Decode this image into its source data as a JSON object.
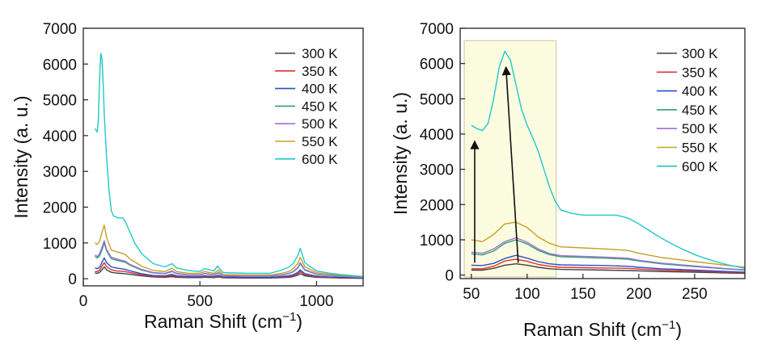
{
  "legend_labels": [
    "300 K",
    "350 K",
    "400 K",
    "450 K",
    "500 K",
    "550 K",
    "600 K"
  ],
  "chart_data": [
    {
      "type": "line",
      "xlabel": "Raman Shift (cm",
      "xlabel_sup": "−1",
      "xlabel_end": ")",
      "ylabel": "Intensity (a. u.)",
      "xlim": [
        0,
        1200
      ],
      "ylim": [
        -200,
        7000
      ],
      "xticks": [
        0,
        500,
        1000
      ],
      "yticks": [
        0,
        1000,
        2000,
        3000,
        4000,
        5000,
        6000,
        7000
      ],
      "grid": false,
      "legend_position": "top-right",
      "series": [
        {
          "name": "300 K",
          "color": "#404040",
          "x": [
            50,
            60,
            70,
            80,
            90,
            100,
            120,
            140,
            160,
            180,
            200,
            250,
            300,
            350,
            380,
            400,
            450,
            500,
            520,
            560,
            580,
            600,
            700,
            800,
            850,
            880,
            900,
            920,
            930,
            950,
            1000,
            1050,
            1100,
            1200
          ],
          "y": [
            160,
            150,
            180,
            250,
            330,
            250,
            180,
            160,
            150,
            140,
            120,
            80,
            50,
            40,
            60,
            40,
            30,
            30,
            40,
            30,
            50,
            25,
            20,
            20,
            30,
            40,
            60,
            100,
            140,
            80,
            40,
            30,
            20,
            10
          ]
        },
        {
          "name": "350 K",
          "color": "#e03030",
          "x": [
            50,
            60,
            70,
            80,
            90,
            100,
            120,
            140,
            160,
            180,
            200,
            250,
            300,
            350,
            380,
            400,
            450,
            500,
            520,
            560,
            580,
            600,
            700,
            800,
            850,
            880,
            900,
            920,
            930,
            950,
            1000,
            1050,
            1100,
            1200
          ],
          "y": [
            200,
            200,
            240,
            350,
            450,
            340,
            250,
            220,
            210,
            200,
            170,
            110,
            70,
            60,
            90,
            60,
            45,
            45,
            60,
            45,
            70,
            35,
            30,
            30,
            45,
            60,
            85,
            140,
            200,
            110,
            55,
            40,
            30,
            15
          ]
        },
        {
          "name": "400 K",
          "color": "#2850c8",
          "x": [
            50,
            60,
            70,
            80,
            90,
            100,
            120,
            140,
            160,
            180,
            200,
            250,
            300,
            350,
            380,
            400,
            450,
            500,
            520,
            560,
            580,
            600,
            700,
            800,
            850,
            880,
            900,
            920,
            930,
            950,
            1000,
            1050,
            1100,
            1200
          ],
          "y": [
            300,
            280,
            320,
            460,
            580,
            450,
            330,
            300,
            280,
            260,
            220,
            140,
            90,
            80,
            120,
            80,
            60,
            60,
            80,
            60,
            95,
            45,
            40,
            40,
            60,
            80,
            110,
            180,
            250,
            140,
            70,
            50,
            40,
            20
          ]
        },
        {
          "name": "450 K",
          "color": "#30a070",
          "x": [
            50,
            60,
            70,
            80,
            90,
            100,
            120,
            140,
            160,
            180,
            200,
            250,
            300,
            350,
            380,
            400,
            450,
            500,
            520,
            560,
            580,
            600,
            700,
            800,
            850,
            880,
            900,
            920,
            930,
            950,
            1000,
            1050,
            1100,
            1200
          ],
          "y": [
            620,
            580,
            640,
            800,
            1000,
            780,
            560,
            520,
            490,
            460,
            380,
            240,
            160,
            140,
            200,
            140,
            100,
            100,
            140,
            100,
            160,
            80,
            70,
            70,
            100,
            140,
            190,
            300,
            420,
            240,
            120,
            90,
            70,
            35
          ]
        },
        {
          "name": "500 K",
          "color": "#a070d8",
          "x": [
            50,
            60,
            70,
            80,
            90,
            100,
            120,
            140,
            160,
            180,
            200,
            250,
            300,
            350,
            380,
            400,
            450,
            500,
            520,
            560,
            580,
            600,
            700,
            800,
            850,
            880,
            900,
            920,
            930,
            950,
            1000,
            1050,
            1100,
            1200
          ],
          "y": [
            660,
            620,
            700,
            880,
            1060,
            820,
            600,
            560,
            520,
            490,
            400,
            260,
            170,
            150,
            215,
            150,
            110,
            110,
            150,
            110,
            175,
            85,
            75,
            75,
            110,
            150,
            205,
            320,
            450,
            260,
            130,
            95,
            75,
            40
          ]
        },
        {
          "name": "550 K",
          "color": "#c8a020",
          "x": [
            50,
            60,
            70,
            80,
            90,
            100,
            120,
            140,
            160,
            180,
            200,
            250,
            300,
            350,
            380,
            400,
            450,
            500,
            520,
            560,
            580,
            600,
            700,
            800,
            850,
            880,
            900,
            920,
            930,
            950,
            1000,
            1050,
            1100,
            1200
          ],
          "y": [
            1000,
            960,
            1050,
            1300,
            1500,
            1150,
            800,
            760,
            720,
            680,
            550,
            350,
            230,
            200,
            290,
            200,
            150,
            150,
            200,
            150,
            240,
            115,
            100,
            100,
            150,
            200,
            280,
            430,
            600,
            340,
            170,
            125,
            100,
            50
          ]
        },
        {
          "name": "600 K",
          "color": "#20c8c8",
          "x": [
            50,
            60,
            65,
            70,
            75,
            80,
            85,
            90,
            100,
            110,
            120,
            130,
            150,
            170,
            180,
            200,
            220,
            250,
            300,
            350,
            380,
            400,
            450,
            500,
            520,
            560,
            575,
            600,
            700,
            800,
            850,
            880,
            900,
            920,
            930,
            950,
            1000,
            1050,
            1100,
            1200
          ],
          "y": [
            4200,
            4100,
            4500,
            5600,
            6300,
            6150,
            5500,
            4600,
            3400,
            2500,
            1900,
            1750,
            1700,
            1700,
            1600,
            1300,
            1000,
            700,
            420,
            330,
            420,
            300,
            230,
            200,
            280,
            220,
            350,
            170,
            150,
            150,
            240,
            320,
            420,
            650,
            850,
            450,
            220,
            160,
            120,
            60
          ]
        }
      ]
    },
    {
      "type": "line",
      "xlabel": "Raman Shift (cm",
      "xlabel_sup": "−1",
      "xlabel_end": ")",
      "ylabel": "Intensity (a. u.)",
      "xlim": [
        40,
        295
      ],
      "ylim": [
        -100,
        7000
      ],
      "xticks": [
        50,
        100,
        150,
        200,
        250
      ],
      "yticks": [
        0,
        1000,
        2000,
        3000,
        4000,
        5000,
        6000,
        7000
      ],
      "grid": false,
      "legend_position": "top-right",
      "highlight_region": {
        "x": [
          40,
          126
        ],
        "y": [
          -100,
          6650
        ],
        "color": "#fbfbe0"
      },
      "arrows": [
        {
          "from": [
            53,
            350
          ],
          "to": [
            53,
            3800
          ]
        },
        {
          "from": [
            92,
            350
          ],
          "to": [
            81,
            5900
          ]
        }
      ],
      "series": [
        {
          "name": "300 K",
          "color": "#404040",
          "x": [
            50,
            60,
            70,
            80,
            90,
            100,
            110,
            120,
            130,
            150,
            170,
            190,
            200,
            220,
            250,
            280,
            295
          ],
          "y": [
            140,
            140,
            190,
            280,
            320,
            280,
            220,
            180,
            160,
            150,
            140,
            130,
            120,
            100,
            80,
            60,
            50
          ]
        },
        {
          "name": "350 K",
          "color": "#e03030",
          "x": [
            50,
            60,
            70,
            80,
            90,
            100,
            110,
            120,
            130,
            150,
            170,
            190,
            200,
            220,
            250,
            280,
            295
          ],
          "y": [
            180,
            180,
            250,
            400,
            450,
            390,
            300,
            250,
            220,
            210,
            200,
            190,
            170,
            140,
            110,
            80,
            65
          ]
        },
        {
          "name": "400 K",
          "color": "#2850c8",
          "x": [
            50,
            60,
            70,
            80,
            90,
            100,
            110,
            120,
            130,
            150,
            170,
            190,
            200,
            220,
            250,
            280,
            295
          ],
          "y": [
            280,
            270,
            330,
            470,
            560,
            480,
            380,
            320,
            290,
            280,
            270,
            250,
            220,
            180,
            140,
            100,
            80
          ]
        },
        {
          "name": "450 K",
          "color": "#30a070",
          "x": [
            50,
            60,
            70,
            80,
            90,
            100,
            110,
            120,
            130,
            150,
            170,
            190,
            200,
            220,
            250,
            280,
            295
          ],
          "y": [
            600,
            570,
            680,
            900,
            1000,
            880,
            700,
            580,
            520,
            500,
            480,
            450,
            400,
            320,
            240,
            170,
            140
          ]
        },
        {
          "name": "500 K",
          "color": "#a070d8",
          "x": [
            50,
            60,
            70,
            80,
            90,
            100,
            110,
            120,
            130,
            150,
            170,
            190,
            200,
            220,
            250,
            280,
            295
          ],
          "y": [
            650,
            620,
            740,
            950,
            1060,
            930,
            740,
            610,
            550,
            530,
            510,
            480,
            420,
            340,
            260,
            180,
            150
          ]
        },
        {
          "name": "550 K",
          "color": "#c8a020",
          "x": [
            50,
            60,
            70,
            80,
            90,
            100,
            110,
            120,
            130,
            150,
            170,
            190,
            200,
            220,
            250,
            280,
            295
          ],
          "y": [
            1000,
            950,
            1150,
            1450,
            1500,
            1350,
            1080,
            900,
            800,
            770,
            740,
            700,
            620,
            500,
            380,
            270,
            220
          ]
        },
        {
          "name": "600 K",
          "color": "#20c8c8",
          "x": [
            50,
            55,
            60,
            65,
            70,
            75,
            80,
            85,
            90,
            95,
            100,
            105,
            110,
            115,
            120,
            125,
            130,
            140,
            150,
            160,
            170,
            180,
            190,
            200,
            210,
            220,
            230,
            240,
            250,
            260,
            270,
            280,
            295
          ],
          "y": [
            4250,
            4150,
            4100,
            4300,
            5000,
            5900,
            6350,
            6100,
            5400,
            4700,
            4250,
            3900,
            3500,
            3000,
            2500,
            2100,
            1850,
            1750,
            1700,
            1700,
            1700,
            1700,
            1620,
            1450,
            1250,
            1050,
            880,
            720,
            580,
            470,
            370,
            290,
            190
          ]
        }
      ]
    }
  ]
}
